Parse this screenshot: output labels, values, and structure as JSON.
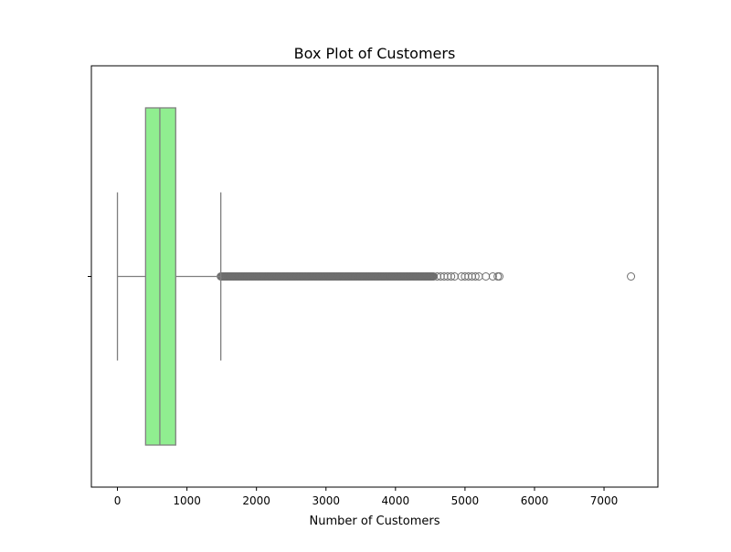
{
  "chart_data": {
    "type": "box",
    "title": "Box Plot of Customers",
    "xlabel": "Number of Customers",
    "ylabel": "",
    "orientation": "horizontal",
    "xlim": [
      -375,
      7775
    ],
    "x_ticks": [
      0,
      1000,
      2000,
      3000,
      4000,
      5000,
      6000,
      7000
    ],
    "grid": false,
    "legend": "none",
    "box": {
      "whisker_low": 0,
      "q1": 405,
      "median": 610,
      "q3": 838,
      "whisker_high": 1487
    },
    "outliers_dense_range": [
      1487,
      4550
    ],
    "outliers_sparse": [
      4600,
      4650,
      4700,
      4750,
      4800,
      4850,
      4950,
      5000,
      5050,
      5100,
      5150,
      5200,
      5300,
      5400,
      5470,
      5494,
      7388
    ],
    "colors": {
      "box_fill": "#90ee90",
      "lines": "#7f7f7f",
      "outlier_edge": "#6e6e6e"
    }
  }
}
